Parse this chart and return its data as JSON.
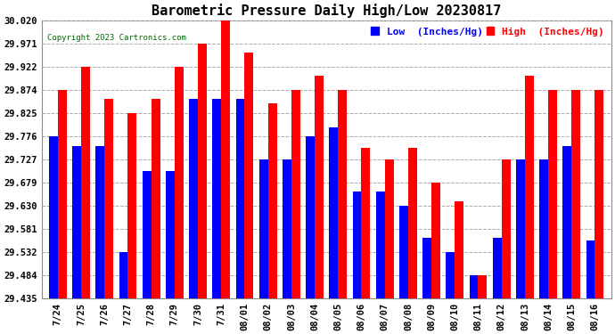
{
  "title": "Barometric Pressure Daily High/Low 20230817",
  "copyright": "Copyright 2023 Cartronics.com",
  "legend_low": "Low  (Inches/Hg)",
  "legend_high": "High  (Inches/Hg)",
  "dates": [
    "7/24",
    "7/25",
    "7/26",
    "7/27",
    "7/28",
    "7/29",
    "7/30",
    "7/31",
    "08/01",
    "08/02",
    "08/03",
    "08/04",
    "08/05",
    "08/06",
    "08/07",
    "08/08",
    "08/09",
    "08/10",
    "08/11",
    "08/12",
    "08/13",
    "08/14",
    "08/15",
    "08/16"
  ],
  "high_values": [
    29.874,
    29.922,
    29.854,
    29.825,
    29.854,
    29.922,
    29.971,
    30.02,
    29.952,
    29.845,
    29.874,
    29.903,
    29.874,
    29.752,
    29.727,
    29.752,
    29.679,
    29.638,
    29.484,
    29.727,
    29.903,
    29.874,
    29.874,
    29.874
  ],
  "low_values": [
    29.776,
    29.756,
    29.756,
    29.532,
    29.703,
    29.703,
    29.854,
    29.854,
    29.854,
    29.727,
    29.727,
    29.776,
    29.795,
    29.659,
    29.659,
    29.63,
    29.562,
    29.532,
    29.484,
    29.562,
    29.727,
    29.727,
    29.756,
    29.556
  ],
  "ymin": 29.435,
  "ymax": 30.02,
  "yticks": [
    29.435,
    29.484,
    29.532,
    29.581,
    29.63,
    29.679,
    29.727,
    29.776,
    29.825,
    29.874,
    29.922,
    29.971,
    30.02
  ],
  "bar_color_low": "#0000ff",
  "bar_color_high": "#ff0000",
  "bg_color": "#ffffff",
  "grid_color": "#aaaaaa",
  "title_fontsize": 11,
  "tick_fontsize": 7.5,
  "legend_fontsize": 8,
  "figwidth": 6.9,
  "figheight": 3.75,
  "dpi": 100
}
